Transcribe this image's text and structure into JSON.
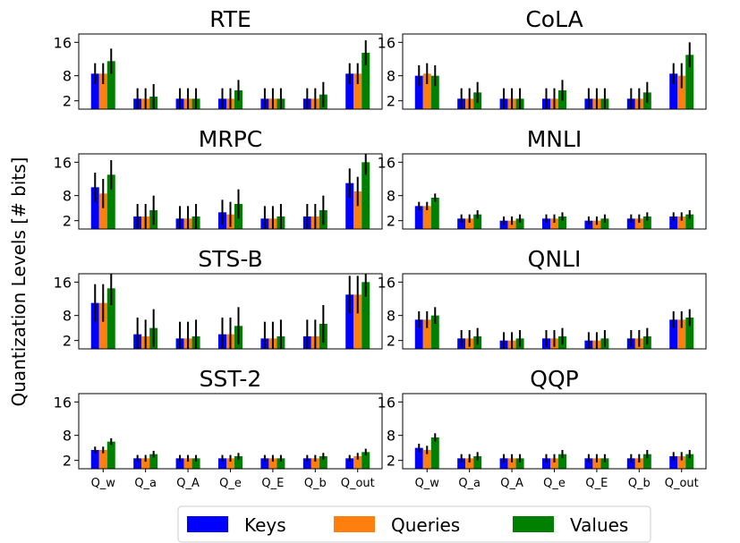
{
  "figure": {
    "ylabel": "Quantization Levels [# bits]",
    "legend": [
      {
        "name": "Keys",
        "color": "#0000ff"
      },
      {
        "name": "Queries",
        "color": "#ff7f0e"
      },
      {
        "name": "Values",
        "color": "#008000"
      }
    ],
    "legend_position": "bottom-center"
  },
  "chart_data": [
    {
      "type": "bar",
      "title": "RTE",
      "categories": [
        "Q_w",
        "Q_a",
        "Q_A",
        "Q_e",
        "Q_E",
        "Q_b",
        "Q_out"
      ],
      "yticks": [
        2,
        8,
        16
      ],
      "ylim": [
        0,
        18
      ],
      "show_xticks": false,
      "series": [
        {
          "name": "Keys",
          "values": [
            8.5,
            2.5,
            2.5,
            2.5,
            2.5,
            2.5,
            8.5
          ],
          "errors": [
            2.5,
            2.5,
            2.5,
            2.5,
            2.5,
            2.5,
            2.5
          ]
        },
        {
          "name": "Queries",
          "values": [
            8.5,
            2.5,
            2.5,
            2.5,
            2.5,
            2.5,
            8.5
          ],
          "errors": [
            2.5,
            2.5,
            2.5,
            2.5,
            2.5,
            2.5,
            2.5
          ]
        },
        {
          "name": "Values",
          "values": [
            11.5,
            3,
            2.5,
            4.5,
            2.5,
            3.5,
            13.5
          ],
          "errors": [
            3,
            3,
            2.5,
            2.5,
            2.5,
            3,
            3
          ]
        }
      ]
    },
    {
      "type": "bar",
      "title": "CoLA",
      "categories": [
        "Q_w",
        "Q_a",
        "Q_A",
        "Q_e",
        "Q_E",
        "Q_b",
        "Q_out"
      ],
      "yticks": [
        2,
        8,
        16
      ],
      "ylim": [
        0,
        18
      ],
      "show_xticks": false,
      "series": [
        {
          "name": "Keys",
          "values": [
            8,
            2.5,
            2.5,
            2.5,
            2.5,
            2.5,
            8.5
          ],
          "errors": [
            2.5,
            2.5,
            2.5,
            2.5,
            2.5,
            2.5,
            2.5
          ]
        },
        {
          "name": "Queries",
          "values": [
            8.5,
            2.5,
            2.5,
            2.5,
            2.5,
            2.5,
            8
          ],
          "errors": [
            2.5,
            2.5,
            2.5,
            2.5,
            2.5,
            2.5,
            3
          ]
        },
        {
          "name": "Values",
          "values": [
            8,
            4,
            2.5,
            4.5,
            2.5,
            4,
            13
          ],
          "errors": [
            2.5,
            2.5,
            2.5,
            2.5,
            2.5,
            2.5,
            3
          ]
        }
      ]
    },
    {
      "type": "bar",
      "title": "MRPC",
      "categories": [
        "Q_w",
        "Q_a",
        "Q_A",
        "Q_e",
        "Q_E",
        "Q_b",
        "Q_out"
      ],
      "yticks": [
        2,
        8,
        16
      ],
      "ylim": [
        0,
        18
      ],
      "show_xticks": false,
      "series": [
        {
          "name": "Keys",
          "values": [
            10,
            3,
            2.5,
            4,
            2.5,
            3,
            11
          ],
          "errors": [
            3.5,
            3,
            3,
            3,
            3,
            3,
            3.5
          ]
        },
        {
          "name": "Queries",
          "values": [
            8.5,
            3,
            2.5,
            3.5,
            2.5,
            3,
            9
          ],
          "errors": [
            3.5,
            3,
            3,
            3,
            3,
            3,
            3.5
          ]
        },
        {
          "name": "Values",
          "values": [
            13,
            4.5,
            3,
            6,
            3,
            4.5,
            16
          ],
          "errors": [
            3.5,
            3.5,
            3,
            3.5,
            3,
            3.5,
            3
          ]
        }
      ]
    },
    {
      "type": "bar",
      "title": "MNLI",
      "categories": [
        "Q_w",
        "Q_a",
        "Q_A",
        "Q_e",
        "Q_E",
        "Q_b",
        "Q_out"
      ],
      "yticks": [
        2,
        8,
        16
      ],
      "ylim": [
        0,
        18
      ],
      "show_xticks": false,
      "series": [
        {
          "name": "Keys",
          "values": [
            5.5,
            2.5,
            2,
            2.5,
            2,
            2.5,
            3
          ],
          "errors": [
            1,
            1,
            1,
            1,
            1,
            1,
            1
          ]
        },
        {
          "name": "Queries",
          "values": [
            5.5,
            2.5,
            2,
            2.5,
            2,
            2.5,
            3
          ],
          "errors": [
            1,
            1,
            1,
            1,
            1,
            1,
            1
          ]
        },
        {
          "name": "Values",
          "values": [
            7.5,
            3.5,
            2.5,
            3,
            2.5,
            3,
            3.5
          ],
          "errors": [
            1,
            1,
            1,
            1,
            1,
            1,
            1
          ]
        }
      ]
    },
    {
      "type": "bar",
      "title": "STS-B",
      "categories": [
        "Q_w",
        "Q_a",
        "Q_A",
        "Q_e",
        "Q_E",
        "Q_b",
        "Q_out"
      ],
      "yticks": [
        2,
        8,
        16
      ],
      "ylim": [
        0,
        18
      ],
      "show_xticks": false,
      "series": [
        {
          "name": "Keys",
          "values": [
            11,
            3.5,
            2.5,
            3.5,
            2.5,
            3,
            13
          ],
          "errors": [
            4.5,
            4,
            4,
            4,
            4,
            4,
            4.5
          ]
        },
        {
          "name": "Queries",
          "values": [
            11,
            3,
            2.5,
            3.5,
            2.5,
            3,
            13
          ],
          "errors": [
            4.5,
            4,
            4,
            4,
            4,
            4,
            4.5
          ]
        },
        {
          "name": "Values",
          "values": [
            14.5,
            5,
            3,
            5.5,
            3,
            6,
            16
          ],
          "errors": [
            4,
            4.5,
            4,
            4.5,
            4,
            4.5,
            3.5
          ]
        }
      ]
    },
    {
      "type": "bar",
      "title": "QNLI",
      "categories": [
        "Q_w",
        "Q_a",
        "Q_A",
        "Q_e",
        "Q_E",
        "Q_b",
        "Q_out"
      ],
      "yticks": [
        2,
        8,
        16
      ],
      "ylim": [
        0,
        18
      ],
      "show_xticks": false,
      "series": [
        {
          "name": "Keys",
          "values": [
            7,
            2.5,
            2,
            2.5,
            2,
            2.5,
            7
          ],
          "errors": [
            2,
            2,
            2,
            2,
            2,
            2,
            2
          ]
        },
        {
          "name": "Queries",
          "values": [
            7,
            2.5,
            2,
            2.5,
            2,
            2.5,
            7
          ],
          "errors": [
            2,
            2,
            2,
            2,
            2,
            2,
            2
          ]
        },
        {
          "name": "Values",
          "values": [
            8,
            3,
            2.5,
            3,
            2.5,
            3,
            7.5
          ],
          "errors": [
            2,
            2,
            2,
            2,
            2,
            2,
            2
          ]
        }
      ]
    },
    {
      "type": "bar",
      "title": "SST-2",
      "categories": [
        "Q_w",
        "Q_a",
        "Q_A",
        "Q_e",
        "Q_E",
        "Q_b",
        "Q_out"
      ],
      "yticks": [
        2,
        8,
        16
      ],
      "ylim": [
        0,
        18
      ],
      "show_xticks": true,
      "series": [
        {
          "name": "Keys",
          "values": [
            4.5,
            2.5,
            2.5,
            2.5,
            2.5,
            2.5,
            2.5
          ],
          "errors": [
            0.8,
            0.8,
            0.8,
            0.8,
            0.8,
            0.8,
            0.8
          ]
        },
        {
          "name": "Queries",
          "values": [
            4.5,
            2.5,
            2.5,
            2.5,
            2.5,
            2.5,
            3
          ],
          "errors": [
            0.8,
            0.8,
            0.8,
            0.8,
            0.8,
            0.8,
            0.8
          ]
        },
        {
          "name": "Values",
          "values": [
            6.5,
            3.5,
            2.5,
            3,
            2.5,
            3,
            4
          ],
          "errors": [
            0.8,
            0.8,
            0.8,
            0.8,
            0.8,
            0.8,
            0.8
          ]
        }
      ]
    },
    {
      "type": "bar",
      "title": "QQP",
      "categories": [
        "Q_w",
        "Q_a",
        "Q_A",
        "Q_e",
        "Q_E",
        "Q_b",
        "Q_out"
      ],
      "yticks": [
        2,
        8,
        16
      ],
      "ylim": [
        0,
        18
      ],
      "show_xticks": true,
      "series": [
        {
          "name": "Keys",
          "values": [
            5,
            2.5,
            2.5,
            2.5,
            2.5,
            2.5,
            3
          ],
          "errors": [
            1,
            1,
            1,
            1,
            1,
            1,
            1
          ]
        },
        {
          "name": "Queries",
          "values": [
            4.5,
            2.5,
            2.5,
            2.5,
            2.5,
            2.5,
            3
          ],
          "errors": [
            1,
            1,
            1,
            1,
            1,
            1,
            1
          ]
        },
        {
          "name": "Values",
          "values": [
            7.5,
            3,
            2.5,
            3.5,
            2.5,
            3.5,
            3.5
          ],
          "errors": [
            1,
            1,
            1,
            1,
            1,
            1,
            1
          ]
        }
      ]
    }
  ]
}
